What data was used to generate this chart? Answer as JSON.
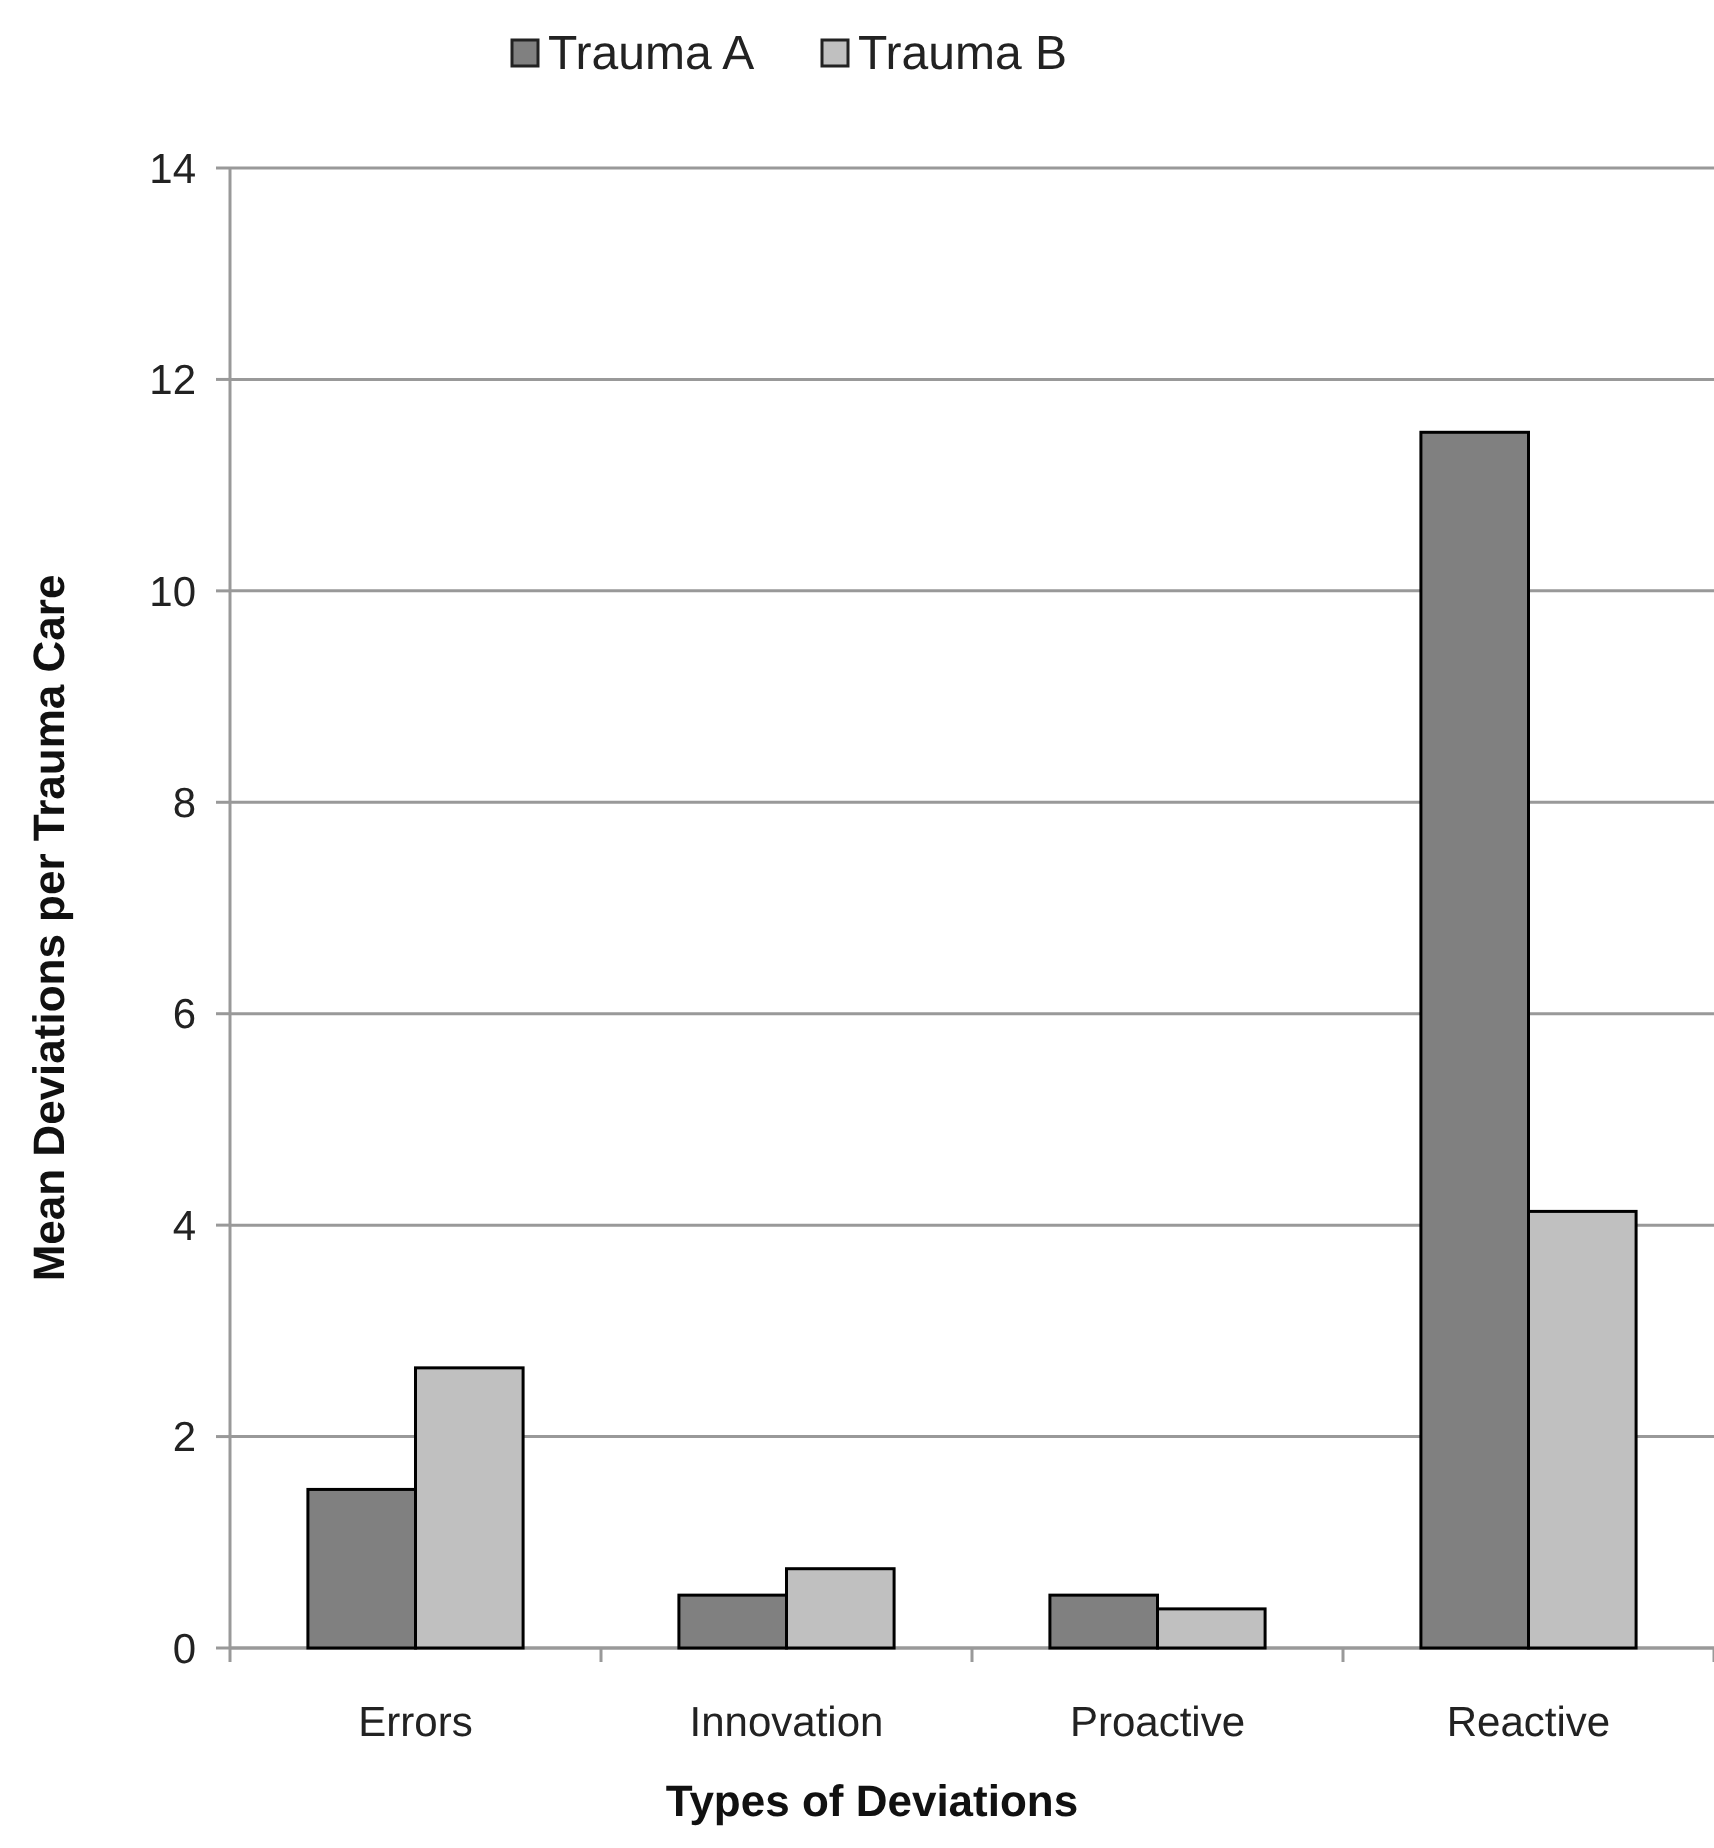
{
  "chart_data": {
    "type": "bar",
    "xlabel": "Types of Deviations",
    "ylabel": "Mean Deviations per Trauma Care",
    "categories": [
      "Errors",
      "Innovation",
      "Proactive",
      "Reactive"
    ],
    "series": [
      {
        "name": "Trauma A",
        "color": "#808080",
        "values": [
          1.5,
          0.5,
          0.5,
          11.5
        ]
      },
      {
        "name": "Trauma B",
        "color": "#c0c0c0",
        "values": [
          2.65,
          0.75,
          0.37,
          4.13
        ]
      }
    ],
    "ylim": [
      0,
      14
    ],
    "yticks": [
      0,
      2,
      4,
      6,
      8,
      10,
      12,
      14
    ],
    "grid": "y",
    "legend": "top"
  }
}
